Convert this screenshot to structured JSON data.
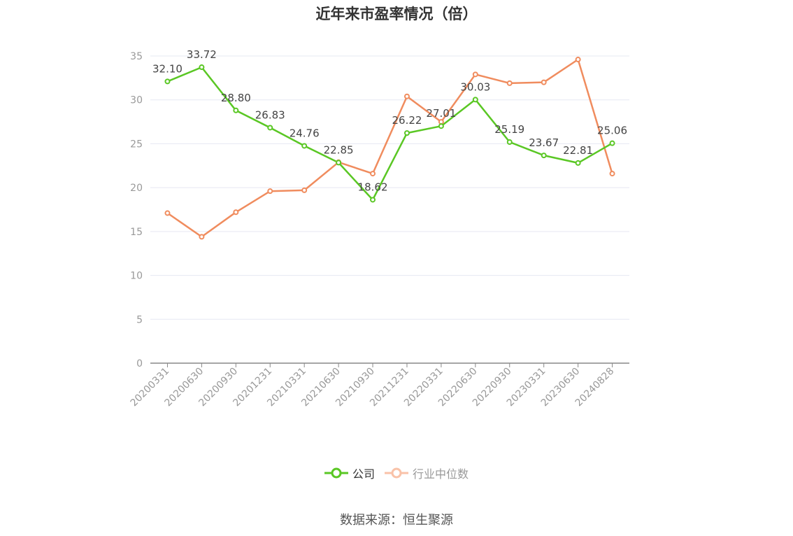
{
  "chart_data": {
    "type": "line",
    "title": "近年来市盈率情况（倍）",
    "categories": [
      "20200331",
      "20200630",
      "20200930",
      "20201231",
      "20210331",
      "20210630",
      "20210930",
      "20211231",
      "20220331",
      "20220630",
      "20220930",
      "20230331",
      "20230630",
      "20240828"
    ],
    "ylim": [
      0,
      35
    ],
    "yticks": [
      0,
      5,
      10,
      15,
      20,
      25,
      30,
      35
    ],
    "grid": true,
    "legend_position": "bottom",
    "series": [
      {
        "name": "公司",
        "color": "#5ac724",
        "values": [
          32.1,
          33.72,
          28.8,
          26.83,
          24.76,
          22.85,
          18.62,
          26.22,
          27.01,
          30.03,
          25.19,
          23.67,
          22.81,
          25.06
        ],
        "labels": [
          "32.10",
          "33.72",
          "28.80",
          "26.83",
          "24.76",
          "22.85",
          "18.62",
          "26.22",
          "27.01",
          "30.03",
          "25.19",
          "23.67",
          "22.81",
          "25.06"
        ]
      },
      {
        "name": "行业中位数",
        "color": "#f08c5e",
        "values": [
          17.1,
          14.4,
          17.2,
          19.6,
          19.7,
          22.9,
          21.6,
          30.4,
          27.5,
          32.9,
          31.9,
          32.0,
          34.6,
          21.6
        ]
      }
    ]
  },
  "source_text": "数据来源：恒生聚源"
}
